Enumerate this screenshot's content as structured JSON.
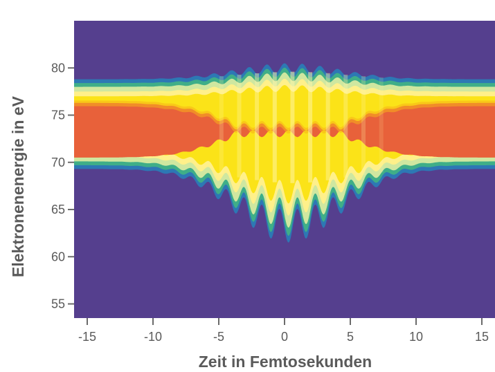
{
  "chart_data": {
    "type": "heatmap",
    "title": "",
    "xlabel": "Zeit in Femtosekunden",
    "ylabel": "Elektronenenergie in eV",
    "xlim": [
      -16,
      16
    ],
    "ylim": [
      53.5,
      85
    ],
    "x_ticks": [
      -15,
      -10,
      -5,
      0,
      5,
      10,
      15
    ],
    "y_ticks": [
      55,
      60,
      65,
      70,
      75,
      80
    ],
    "grid": false,
    "legend": "none",
    "colorscale": [
      "#553f8e",
      "#2d78b4",
      "#3fae88",
      "#cfe7a0",
      "#fff08a",
      "#fbe318",
      "#f7b21a",
      "#e8613a"
    ],
    "background_color": "#553f8e",
    "band": {
      "description_values": {
        "base_bottom_edge_eV": 69.3,
        "base_top_edge_eV": 78.8,
        "base_core_bottom_eV": 70.5,
        "base_core_top_eV": 76.3,
        "interference_center_fs": 0.3,
        "interference_halfwidth_fs": 7.2,
        "min_lower_edge_eV": 61.5,
        "max_upper_edge_eV": 80.5,
        "oscillation_period_fs": 1.35
      }
    }
  }
}
